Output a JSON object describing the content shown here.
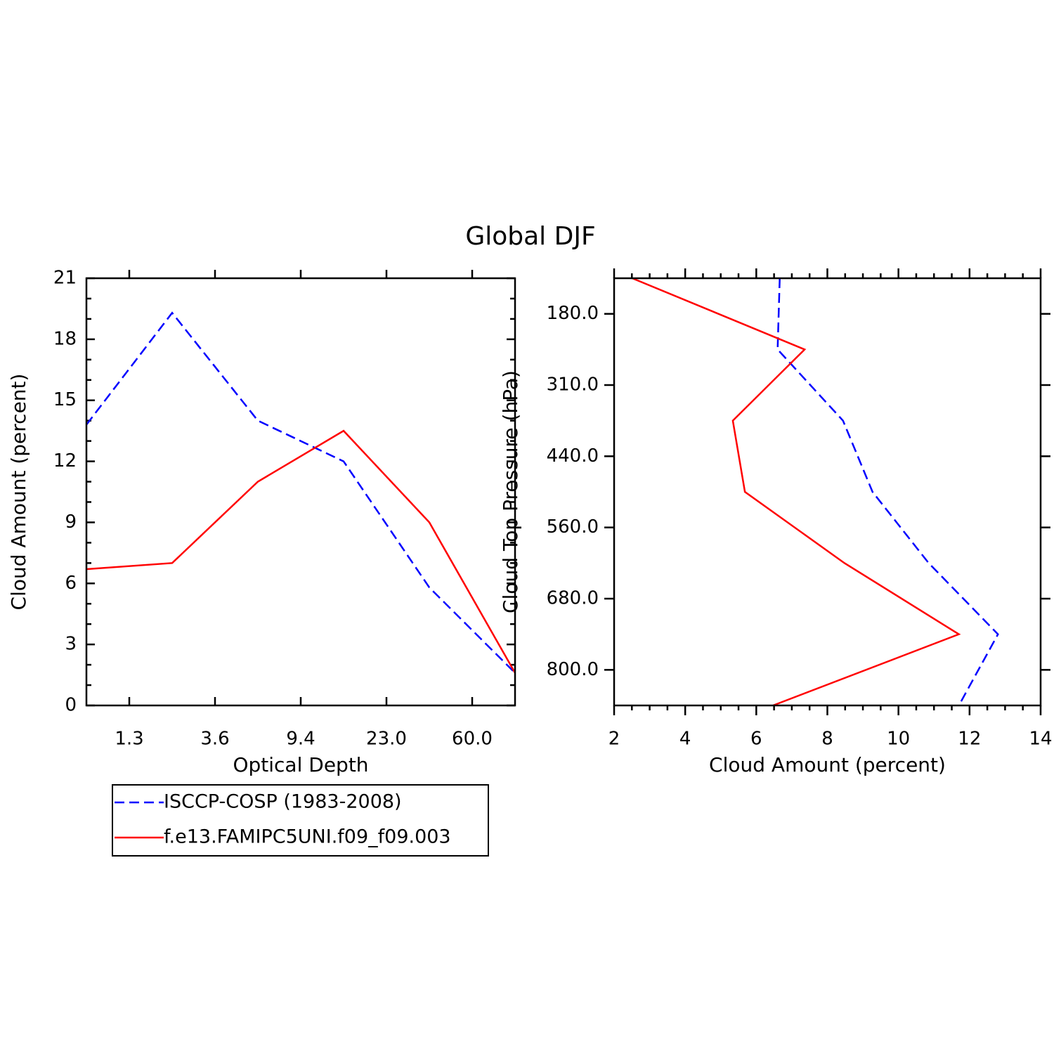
{
  "title": "Global DJF",
  "chart_data": [
    {
      "type": "line",
      "x_label": "Optical Depth",
      "y_label": "Cloud Amount (percent)",
      "x": [
        0,
        1,
        2,
        3,
        4,
        5
      ],
      "xlim": [
        0,
        5
      ],
      "xticks": [
        {
          "value": 0.5,
          "label": "1.3"
        },
        {
          "value": 1.5,
          "label": "3.6"
        },
        {
          "value": 2.5,
          "label": "9.4"
        },
        {
          "value": 3.5,
          "label": "23.0"
        },
        {
          "value": 4.5,
          "label": "60.0"
        }
      ],
      "ylim": [
        0,
        21
      ],
      "yticks": [
        0,
        3,
        6,
        9,
        12,
        15,
        18,
        21
      ],
      "legend": "bottom",
      "series": [
        {
          "name": "ISCCP-COSP (1983-2008)",
          "color": "#0000ff",
          "dash": true,
          "values": [
            13.8,
            19.3,
            14.0,
            12.0,
            5.8,
            1.6
          ]
        },
        {
          "name": "f.e13.FAMIPC5UNI.f09_f09.003",
          "color": "#ff0000",
          "dash": false,
          "values": [
            6.7,
            7.0,
            11.0,
            13.5,
            9.0,
            1.6
          ]
        }
      ]
    },
    {
      "type": "hline",
      "x_label": "Cloud Amount (percent)",
      "y_label": "Cloud Top Pressure (hPa)",
      "y": [
        0,
        1,
        2,
        3,
        4,
        5,
        6
      ],
      "ylim": [
        6,
        0
      ],
      "yticks": [
        {
          "value": 0.5,
          "label": "180.0"
        },
        {
          "value": 1.5,
          "label": "310.0"
        },
        {
          "value": 2.5,
          "label": "440.0"
        },
        {
          "value": 3.5,
          "label": "560.0"
        },
        {
          "value": 4.5,
          "label": "680.0"
        },
        {
          "value": 5.5,
          "label": "800.0"
        }
      ],
      "xlim": [
        2,
        14
      ],
      "xticks": [
        2,
        4,
        6,
        8,
        10,
        12,
        14
      ],
      "series": [
        {
          "color": "#0000ff",
          "dash": true,
          "values": [
            6.66,
            6.6,
            8.44,
            9.27,
            10.85,
            12.8,
            11.7
          ]
        },
        {
          "color": "#ff0000",
          "dash": false,
          "values": [
            2.51,
            7.36,
            5.34,
            5.68,
            8.48,
            11.7,
            6.47
          ]
        }
      ]
    }
  ]
}
